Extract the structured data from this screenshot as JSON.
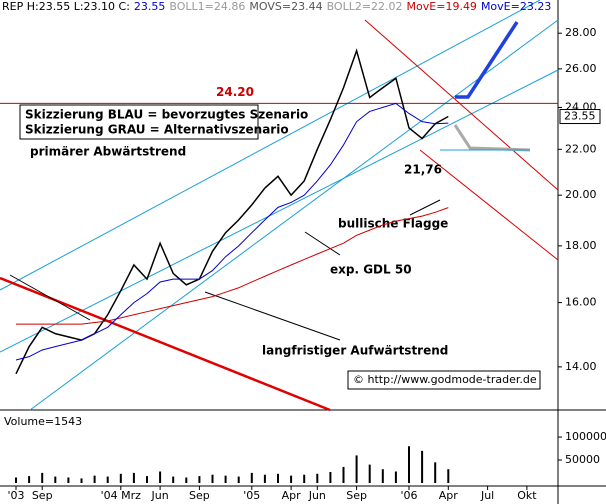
{
  "chart_data": {
    "type": "line",
    "header": [
      {
        "text": "REP H:23.55 L:23.10 C:",
        "color": "#000000"
      },
      {
        "text": "23.55",
        "color": "#0000cc"
      },
      {
        "text": "BOLL1=24.86",
        "color": "#999999"
      },
      {
        "text": "MOVS=23.44",
        "color": "#555555"
      },
      {
        "text": "BOLL2=22.02",
        "color": "#999999"
      },
      {
        "text": "MovE=19.49",
        "color": "#cc0000"
      },
      {
        "text": "MovE=23.23",
        "color": "#0000cc"
      }
    ],
    "categories": [
      "'03",
      null,
      "Sep",
      null,
      null,
      null,
      null,
      null,
      "'04 Mrz",
      null,
      null,
      "Jun",
      null,
      null,
      "Sep",
      null,
      null,
      null,
      "'05",
      null,
      null,
      "Apr",
      null,
      "Jun",
      null,
      null,
      "Sep",
      null,
      null,
      null,
      "'06",
      null,
      null,
      "Apr",
      null,
      null,
      "Jul",
      null,
      null,
      "Okt",
      null
    ],
    "series": [
      {
        "color": "#000000",
        "values": [
          13.8,
          14.6,
          15.2,
          15.0,
          14.9,
          14.8,
          15.0,
          15.6,
          16.4,
          17.3,
          16.8,
          18.1,
          17.0,
          16.6,
          16.8,
          17.8,
          18.5,
          19.0,
          19.6,
          20.3,
          20.8,
          20.0,
          20.6,
          22.0,
          23.4,
          25.0,
          27.0,
          24.5,
          25.0,
          25.5,
          23.0,
          22.5,
          23.2,
          23.55,
          null,
          null,
          null,
          null,
          null,
          null,
          null
        ]
      },
      {
        "color": "#cc0000",
        "values": [
          15.3,
          15.3,
          15.3,
          15.3,
          15.3,
          15.3,
          15.35,
          15.4,
          15.5,
          15.6,
          15.7,
          15.8,
          15.9,
          16.0,
          16.1,
          16.2,
          16.35,
          16.5,
          16.7,
          16.9,
          17.1,
          17.3,
          17.5,
          17.7,
          17.9,
          18.1,
          18.4,
          18.6,
          18.8,
          18.95,
          19.05,
          19.15,
          19.3,
          19.49,
          null,
          null,
          null,
          null,
          null,
          null,
          null
        ]
      },
      {
        "color": "#0000cc",
        "values": [
          14.2,
          14.3,
          14.5,
          14.6,
          14.7,
          14.8,
          15.0,
          15.2,
          15.6,
          16.0,
          16.3,
          16.7,
          16.8,
          16.8,
          16.8,
          17.1,
          17.6,
          18.0,
          18.5,
          19.0,
          19.5,
          19.7,
          20.0,
          20.6,
          21.3,
          22.2,
          23.3,
          23.8,
          24.0,
          24.2,
          23.7,
          23.3,
          23.2,
          23.23,
          null,
          null,
          null,
          null,
          null,
          null,
          null
        ]
      }
    ],
    "ylim": [
      12.8,
      30
    ],
    "log_scale": true,
    "yticks": [
      {
        "value": 14,
        "label": "14.00"
      },
      {
        "value": 16,
        "label": "16.00"
      },
      {
        "value": 18,
        "label": "18.00"
      },
      {
        "value": 20,
        "label": "20.00"
      },
      {
        "value": 22,
        "label": "22.00"
      },
      {
        "value": 24,
        "label": "24.00"
      },
      {
        "value": 26,
        "label": "26.00"
      },
      {
        "value": 28,
        "label": "28.00"
      }
    ],
    "last_price": {
      "value": 23.55,
      "label": "23.55"
    },
    "level": {
      "value": 24.2,
      "label": "24.20",
      "color": "#cc0000"
    },
    "low_label": "21,76",
    "annotations": [
      "Skizzierung BLAU = bevorzugtes Szenario",
      "Skizzierung GRAU = Alternativszenario",
      "primärer Abwärtstrend",
      "bullische Flagge",
      "exp. GDL 50",
      "langfristiger Aufwärtstrend"
    ],
    "source": "© http://www.godmode-trader.de",
    "volume": {
      "label": "Volume=1543",
      "color": "#000000",
      "values": [
        12000,
        15000,
        22000,
        14000,
        12000,
        10000,
        16000,
        14000,
        20000,
        22000,
        15000,
        25000,
        14000,
        12000,
        15000,
        18000,
        16000,
        14000,
        22000,
        18000,
        20000,
        16000,
        18000,
        20000,
        24000,
        35000,
        60000,
        40000,
        30000,
        25000,
        80000,
        70000,
        45000,
        30000,
        null,
        null,
        null,
        null,
        null,
        null,
        null
      ],
      "ylim": [
        0,
        148000
      ],
      "yticks": [
        50000,
        100000
      ]
    }
  }
}
